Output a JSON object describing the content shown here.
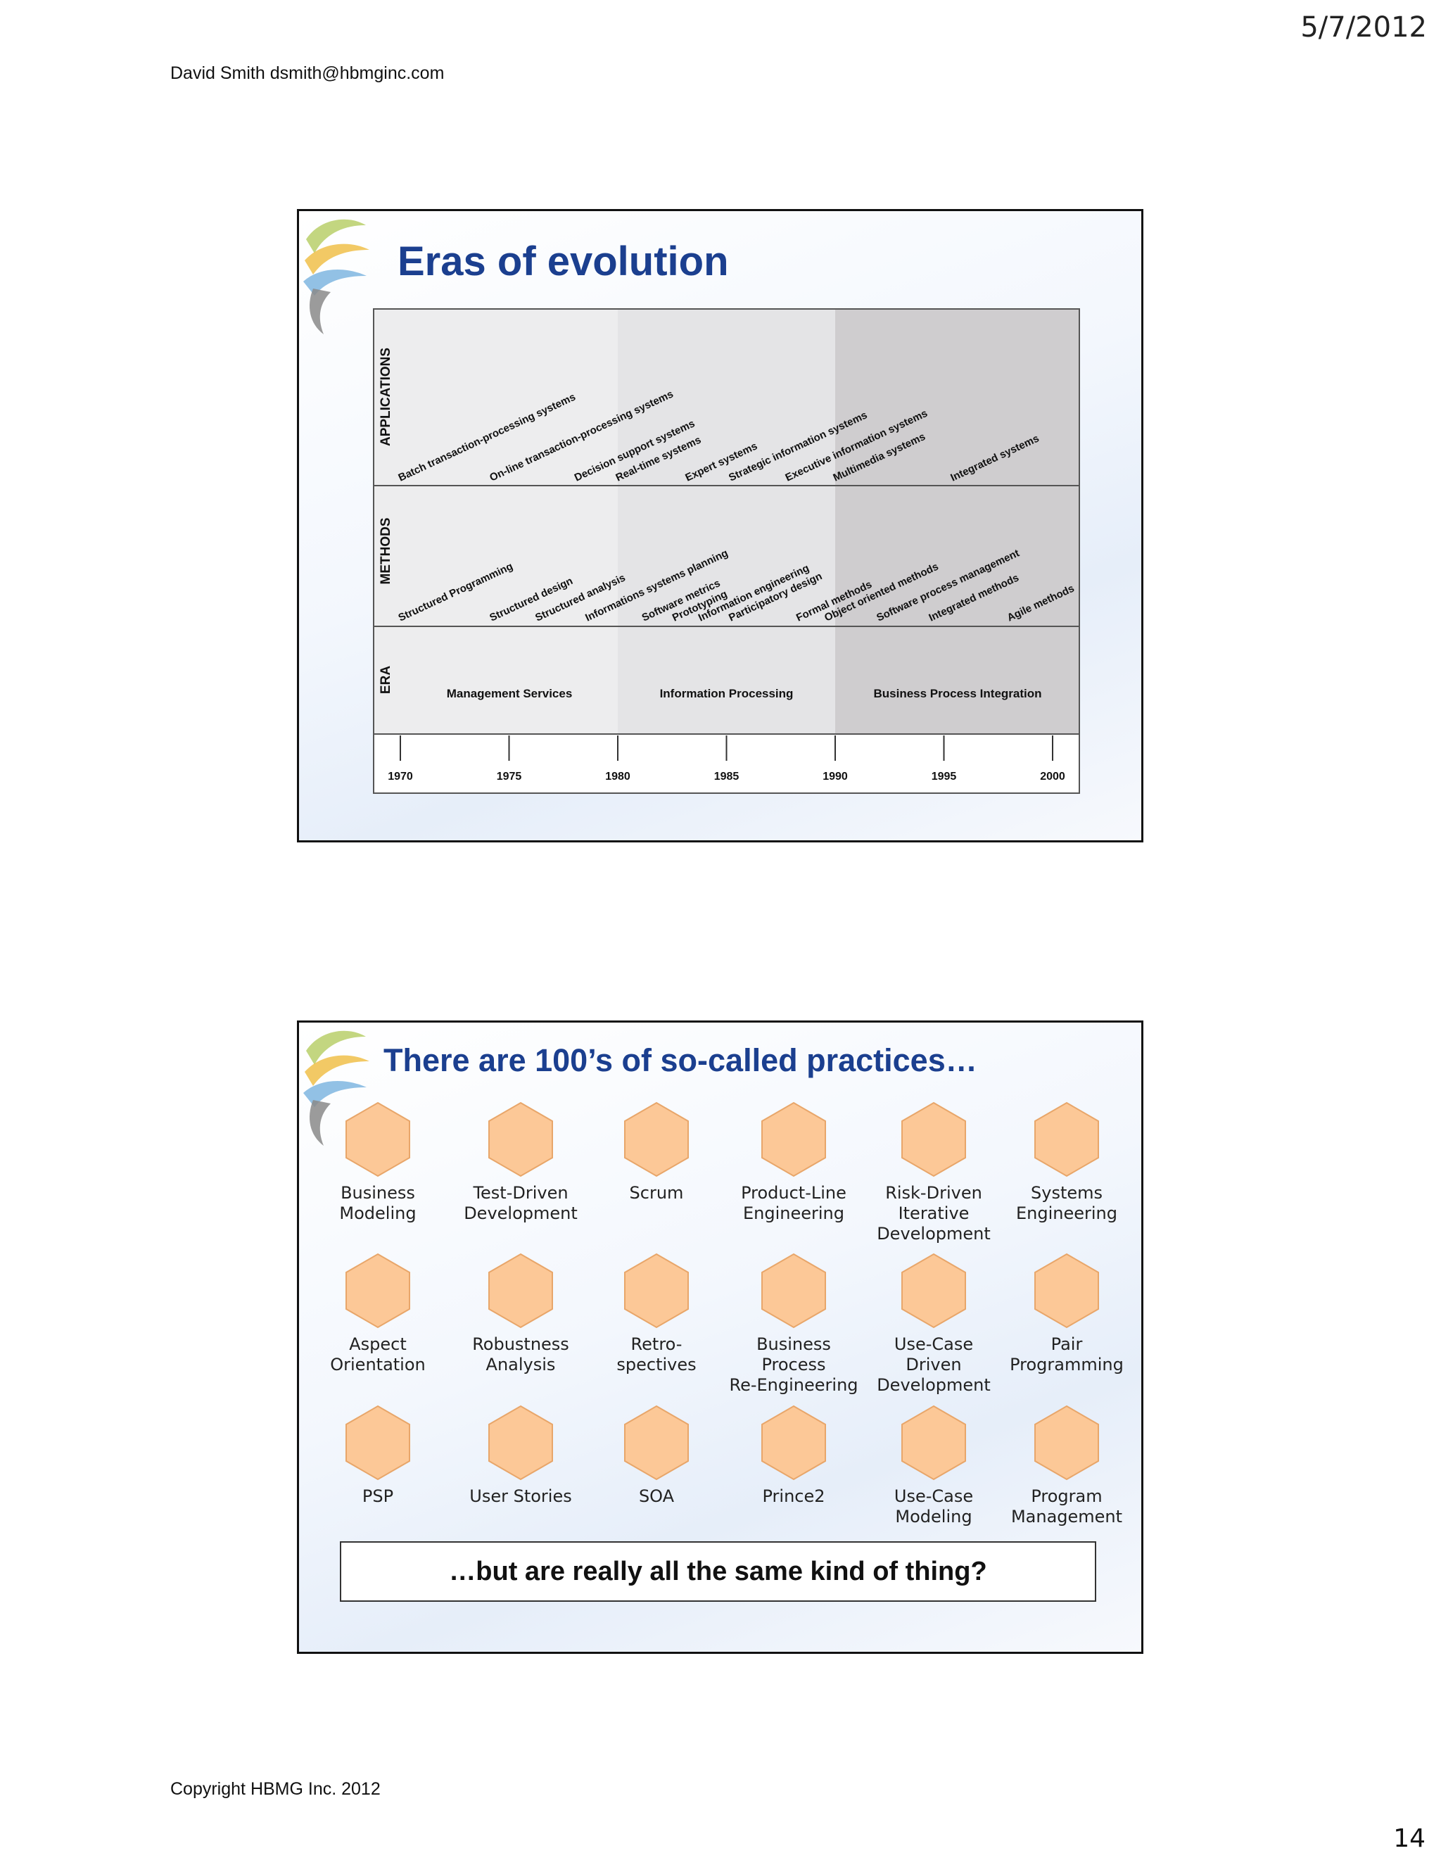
{
  "header": {
    "date": "5/7/2012",
    "author": "David Smith  dsmith@hbmginc.com"
  },
  "footer": {
    "copyright": "Copyright HBMG Inc. 2012",
    "page_number": "14"
  },
  "slide1": {
    "title": "Eras of evolution",
    "row_labels": [
      "APPLICATIONS",
      "METHODS",
      "ERA"
    ],
    "eras": [
      {
        "name": "Management Services",
        "from": 1970,
        "to": 1980,
        "shade": "#ededee"
      },
      {
        "name": "Information Processing",
        "from": 1980,
        "to": 1990,
        "shade": "#e4e4e6"
      },
      {
        "name": "Business Process Integration",
        "from": 1990,
        "to": 2000,
        "shade": "#cfcdcf"
      }
    ],
    "applications": [
      {
        "label": "Batch transaction-processing systems",
        "year": 1970.0
      },
      {
        "label": "On-line transaction-processing systems",
        "year": 1974.2
      },
      {
        "label": "Decision support systems",
        "year": 1978.1
      },
      {
        "label": "Real-time systems",
        "year": 1980.0
      },
      {
        "label": "Expert systems",
        "year": 1983.2
      },
      {
        "label": "Strategic information systems",
        "year": 1985.2
      },
      {
        "label": "Executive information systems",
        "year": 1987.8
      },
      {
        "label": "Multimedia systems",
        "year": 1990.0
      },
      {
        "label": "Integrated systems",
        "year": 1995.4
      }
    ],
    "methods": [
      {
        "label": "Structured Programming",
        "year": 1970.0
      },
      {
        "label": "Structured design",
        "year": 1974.2
      },
      {
        "label": "Structured analysis",
        "year": 1976.3
      },
      {
        "label": "Informations systems planning",
        "year": 1978.6
      },
      {
        "label": "Software metrics",
        "year": 1981.2
      },
      {
        "label": "Prototyping",
        "year": 1982.6
      },
      {
        "label": "Information engineering",
        "year": 1983.8
      },
      {
        "label": "Participatory design",
        "year": 1985.2
      },
      {
        "label": "Formal methods",
        "year": 1988.3
      },
      {
        "label": "Object oriented methods",
        "year": 1989.6
      },
      {
        "label": "Software process management",
        "year": 1992.0
      },
      {
        "label": "Integrated methods",
        "year": 1994.4
      },
      {
        "label": "Agile methods",
        "year": 1998.0
      }
    ],
    "timeline": [
      "1970",
      "1975",
      "1980",
      "1985",
      "1990",
      "1995",
      "2000"
    ]
  },
  "slide2": {
    "title": "There are 100’s of so-called practices…",
    "hex_color": "#fcc897",
    "hex_stroke": "#e8a66a",
    "practices": [
      "Business\nModeling",
      "Test-Driven\nDevelopment",
      "Scrum",
      "Product-Line\nEngineering",
      "Risk-Driven\nIterative\nDevelopment",
      "Systems\nEngineering",
      "Aspect\nOrientation",
      "Robustness\nAnalysis",
      "Retro-\nspectives",
      "Business Process\nRe-Engineering",
      "Use-Case\nDriven\nDevelopment",
      "Pair\nProgramming",
      "PSP",
      "User Stories",
      "SOA",
      "Prince2",
      "Use-Case\nModeling",
      "Program\nManagement"
    ],
    "question": "…but are really all the same kind of thing?"
  }
}
